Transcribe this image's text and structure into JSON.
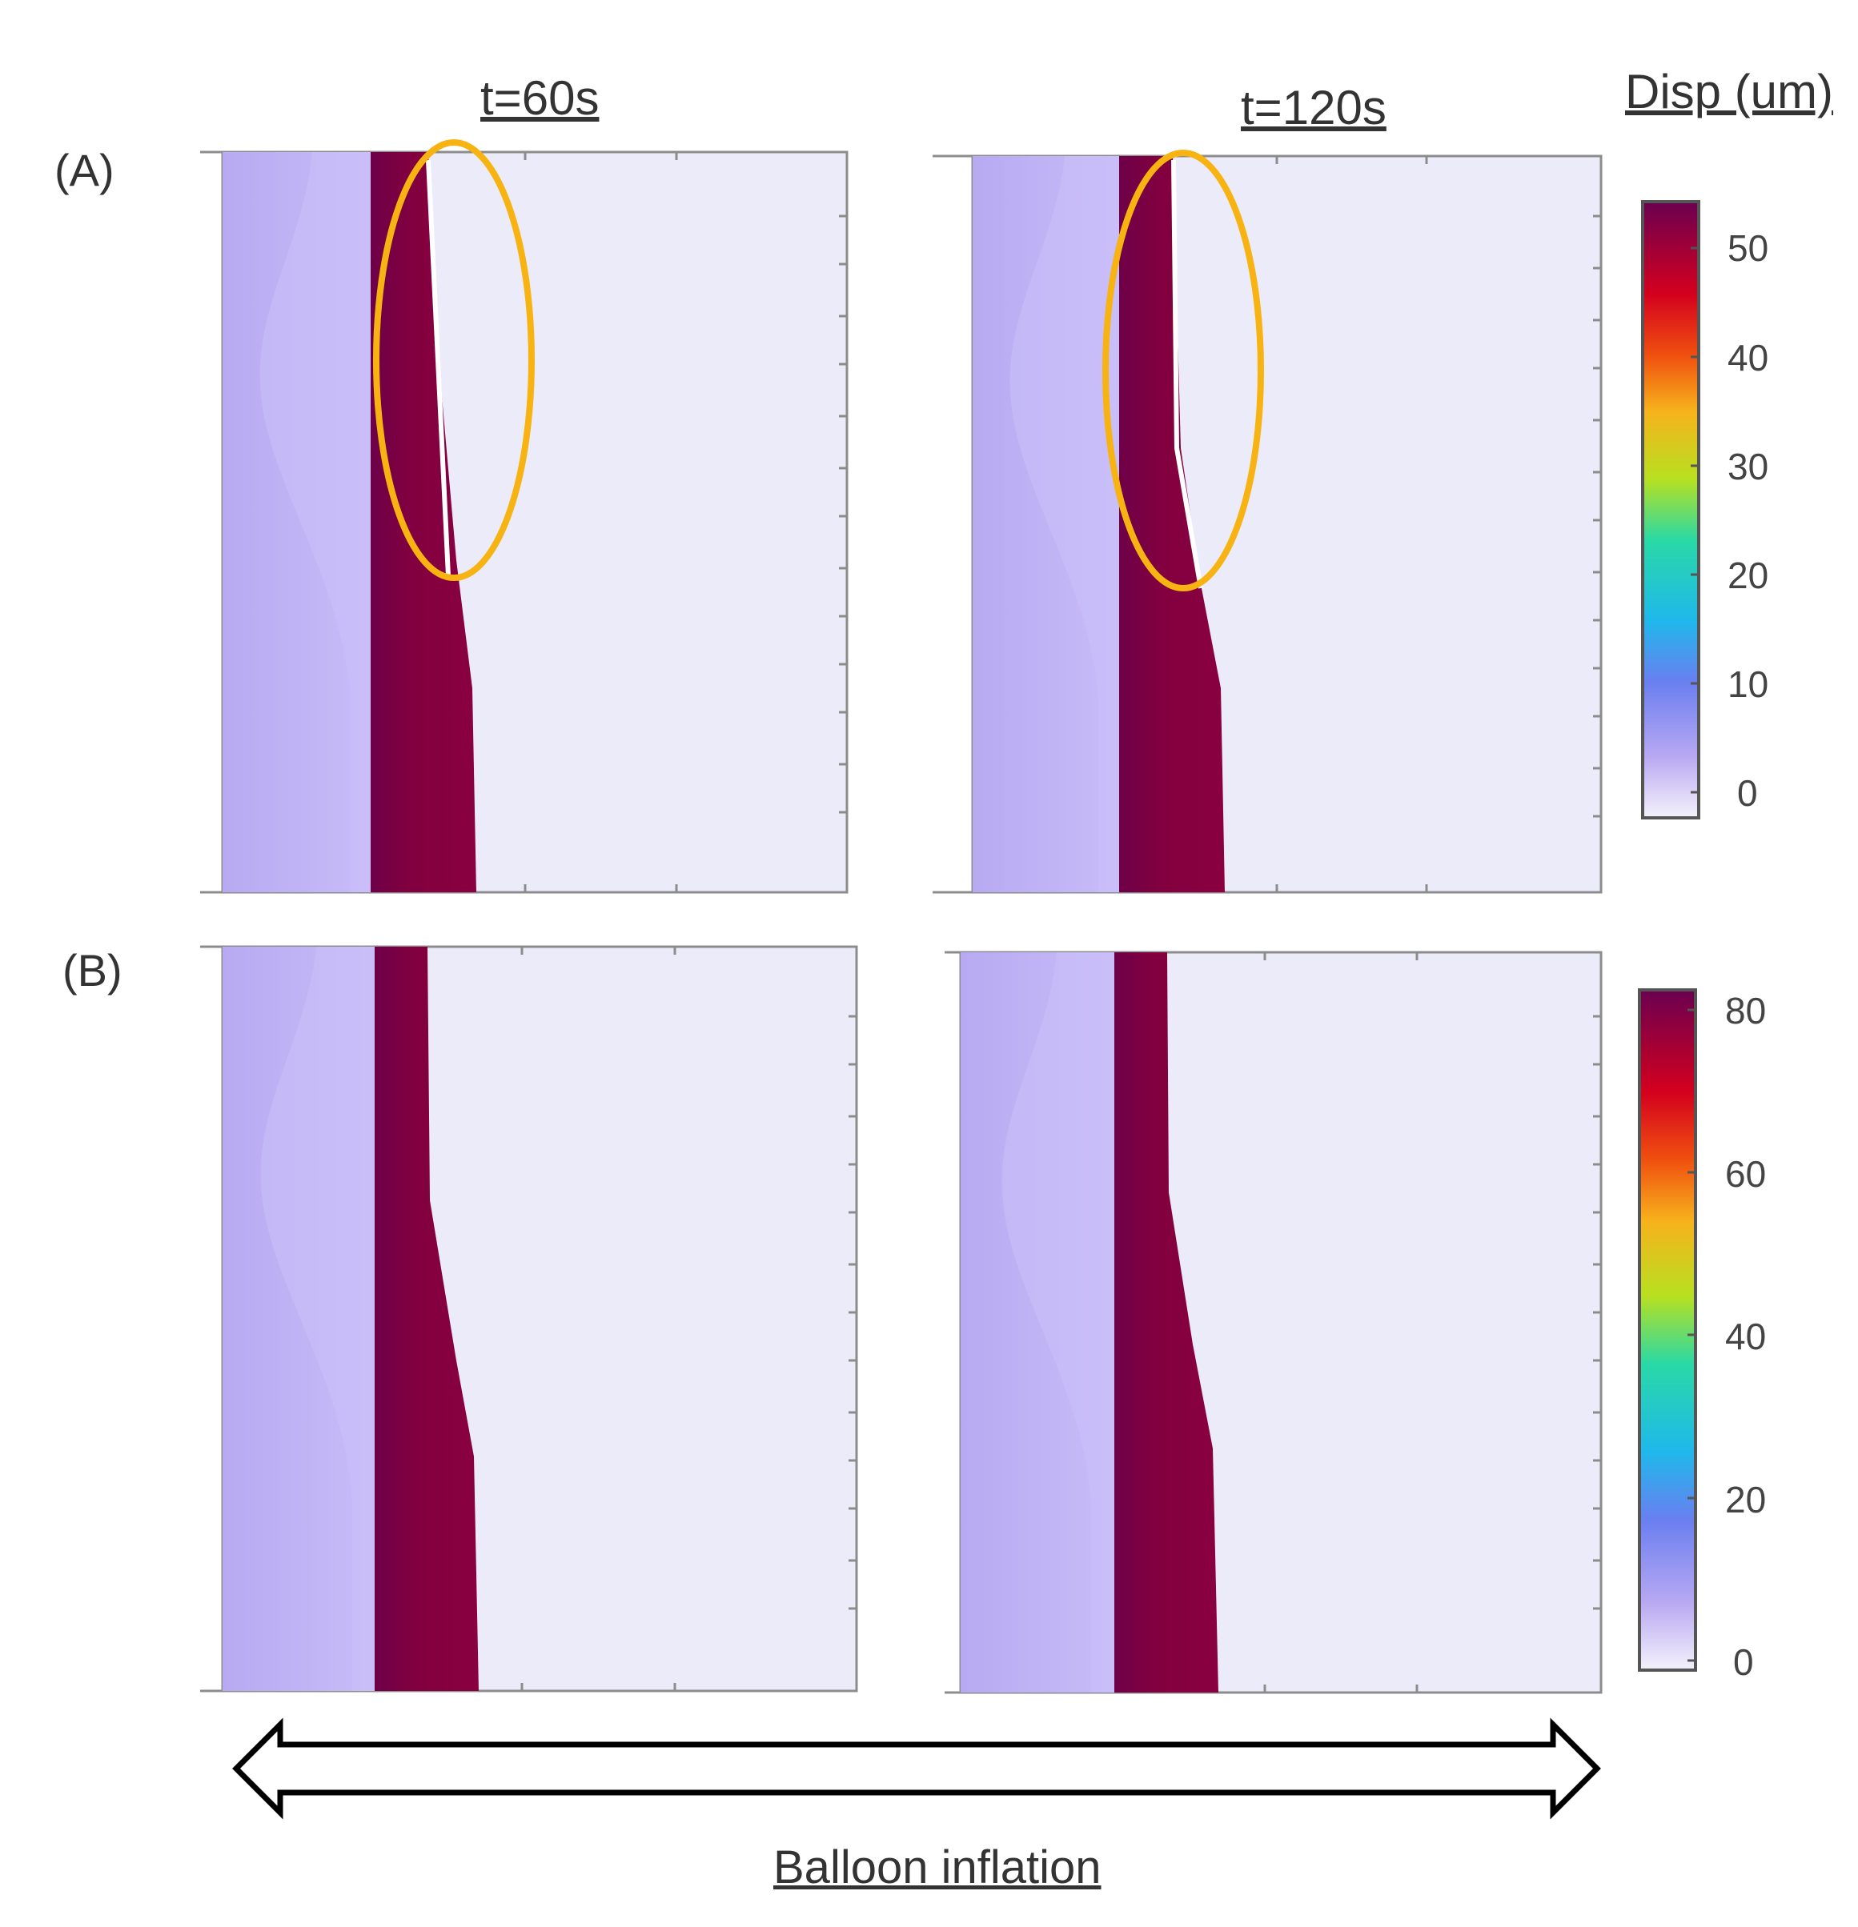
{
  "titles": {
    "col1": "t=60s",
    "col2": "t=120s",
    "colorbar": "Disp (um)"
  },
  "row_labels": {
    "a": "(A)",
    "b": "(B)"
  },
  "colorbar_a": {
    "ticks": [
      "50",
      "40",
      "30",
      "20",
      "10",
      "0"
    ],
    "range": [
      0,
      55
    ]
  },
  "colorbar_b": {
    "ticks": [
      "80",
      "60",
      "40",
      "20",
      "0"
    ],
    "range": [
      0,
      85
    ]
  },
  "arrow_label": "Balloon inflation",
  "colors": {
    "background_field": "#ecebf9",
    "left_band": "#c3b6f6",
    "dark_band": "#7f0042",
    "ellipse": "#f7b311",
    "frame": "#8c8c8c"
  },
  "icons": {
    "arrow": "double-headed-arrow-icon",
    "highlight": "ellipse-highlight-icon"
  }
}
